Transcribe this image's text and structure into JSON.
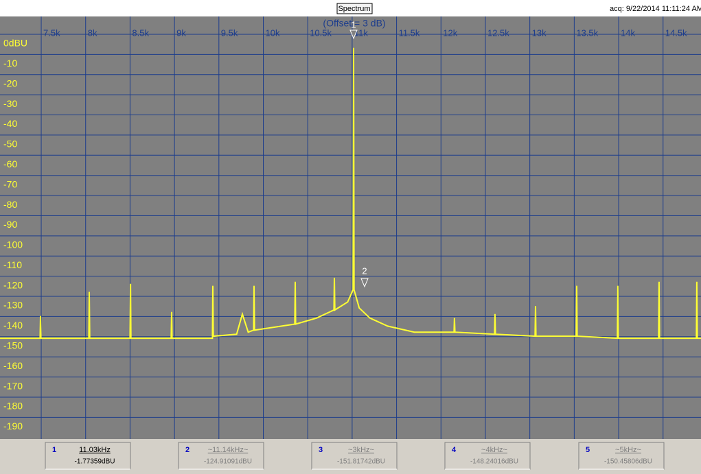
{
  "toolbar": {
    "button": "Spectrum",
    "acquired": "acq: 9/22/2014 11:11:24 AM"
  },
  "chart_data": {
    "type": "line",
    "annotation": "(Offset = 3 dB)",
    "xlim": [
      7036,
      14927
    ],
    "ylim": [
      -196,
      13.6
    ],
    "xticks": [
      {
        "value": 7500,
        "label": "7.5k"
      },
      {
        "value": 8000,
        "label": "8k"
      },
      {
        "value": 8500,
        "label": "8.5k"
      },
      {
        "value": 9000,
        "label": "9k"
      },
      {
        "value": 9500,
        "label": "9.5k"
      },
      {
        "value": 10000,
        "label": "10k"
      },
      {
        "value": 10500,
        "label": "10.5k"
      },
      {
        "value": 11000,
        "label": "11k"
      },
      {
        "value": 11500,
        "label": "11.5k"
      },
      {
        "value": 12000,
        "label": "12k"
      },
      {
        "value": 12500,
        "label": "12.5k"
      },
      {
        "value": 13000,
        "label": "13k"
      },
      {
        "value": 13500,
        "label": "13.5k"
      },
      {
        "value": 14000,
        "label": "14k"
      },
      {
        "value": 14500,
        "label": "14.5k"
      }
    ],
    "yticks": [
      {
        "value": 0,
        "label": "0dBU"
      },
      -10,
      -20,
      -30,
      -40,
      -50,
      -60,
      -70,
      -80,
      -90,
      -100,
      -110,
      -120,
      -130,
      -140,
      -150,
      -160,
      -170,
      -180,
      -190
    ],
    "grid": true,
    "x": [
      7036,
      7487,
      7492,
      7497,
      8036,
      8041,
      8046,
      8500,
      8505,
      8510,
      8963,
      8968,
      8973,
      9427,
      9432,
      9437,
      9700,
      9764,
      9830,
      9891,
      9896,
      9901,
      10354,
      10359,
      10364,
      10600,
      10795,
      10800,
      10805,
      10950,
      11010,
      11016,
      11022,
      11080,
      11200,
      11400,
      11700,
      12147,
      12152,
      12157,
      12603,
      12608,
      12613,
      13059,
      13064,
      13069,
      13523,
      13528,
      13533,
      13986,
      13991,
      13996,
      14450,
      14455,
      14460,
      14875,
      14880,
      14885,
      14927
    ],
    "series": [
      {
        "name": "Spectrum",
        "color": "#ffff33",
        "values": [
          -146,
          -146,
          -135,
          -146,
          -146,
          -123,
          -146,
          -146,
          -119,
          -146,
          -146,
          -133,
          -146,
          -146,
          -120,
          -145,
          -144,
          -134,
          -143,
          -142,
          -120,
          -142,
          -139,
          -118,
          -139,
          -136,
          -132,
          -116,
          -132,
          -128,
          -122,
          -2,
          -122,
          -131,
          -136,
          -140,
          -143,
          -143,
          -136,
          -143,
          -144,
          -134,
          -144,
          -145,
          -130,
          -145,
          -145,
          -120,
          -145,
          -146,
          -120,
          -146,
          -146,
          -118,
          -146,
          -146,
          -118,
          -146,
          -146
        ]
      }
    ]
  },
  "markers": [
    {
      "number": "1",
      "frequency": "11.03kHz",
      "level": "-1.77359dBU"
    },
    {
      "number": "2",
      "frequency": "~11.14kHz~",
      "level": "-124.91091dBU"
    },
    {
      "number": "3",
      "frequency": "~3kHz~",
      "level": "-151.81742dBU"
    },
    {
      "number": "4",
      "frequency": "~4kHz~",
      "level": "-148.24016dBU"
    },
    {
      "number": "5",
      "frequency": "~5kHz~",
      "level": "-150.45806dBU"
    }
  ]
}
